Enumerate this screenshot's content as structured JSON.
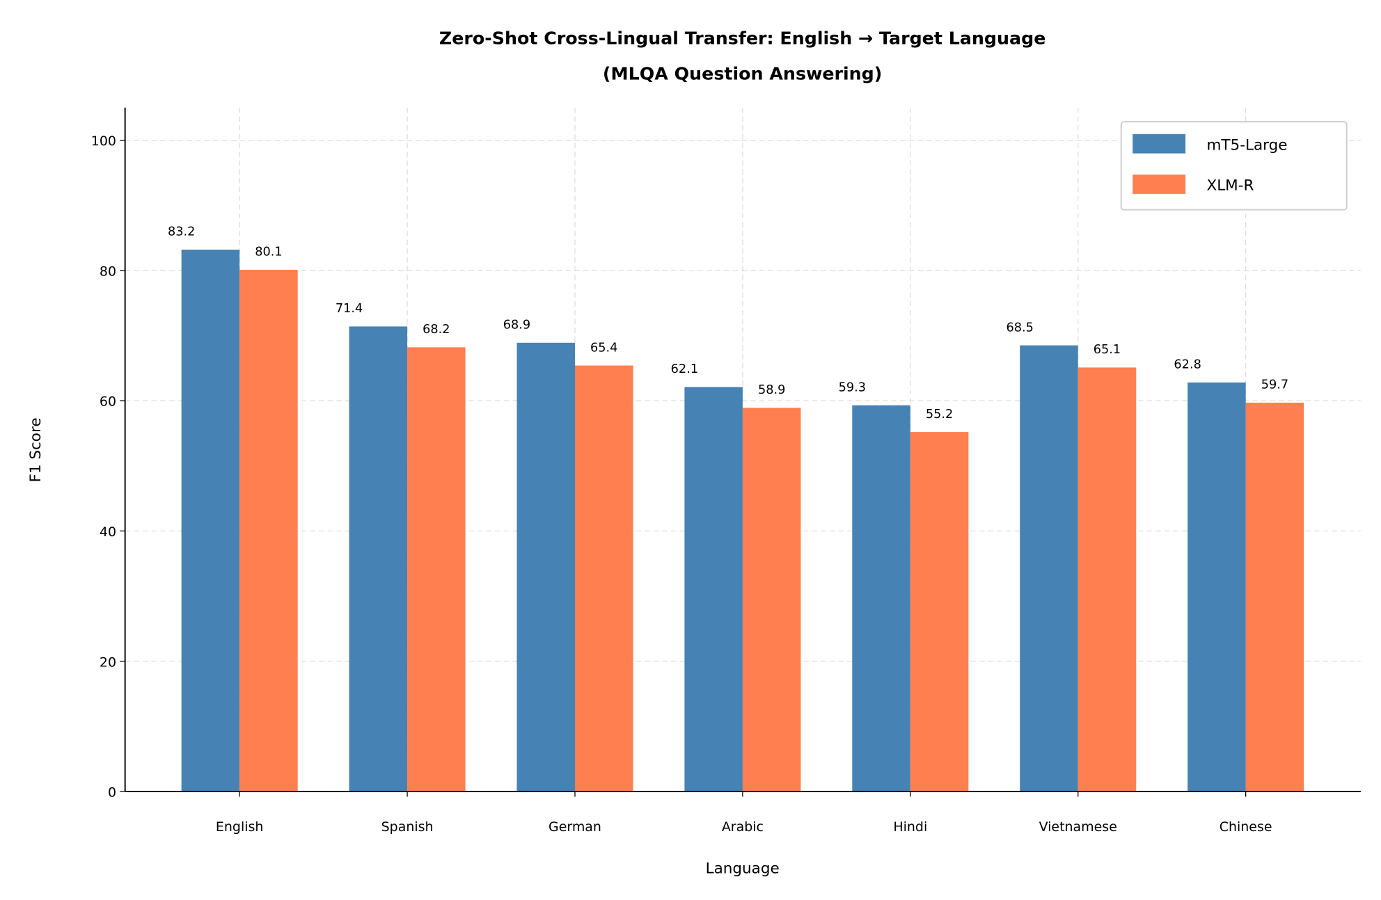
{
  "chart_data": {
    "type": "bar",
    "title": "Zero-Shot Cross-Lingual Transfer: English → Target Language",
    "subtitle": "(MLQA Question Answering)",
    "xlabel": "Language",
    "ylabel": "F1 Score",
    "ylim": [
      0,
      105
    ],
    "yticks": [
      "0",
      "20",
      "40",
      "60",
      "80",
      "100"
    ],
    "grid": true,
    "legend_placement": "top-right",
    "categories": [
      "English",
      "Spanish",
      "German",
      "Arabic",
      "Hindi",
      "Vietnamese",
      "Chinese"
    ],
    "series": [
      {
        "name": "mT5-Large",
        "color": "#4682b4",
        "values": [
          83.2,
          71.4,
          68.9,
          62.1,
          59.3,
          68.5,
          62.8
        ],
        "labels": [
          "83.2",
          "71.4",
          "68.9",
          "62.1",
          "59.3",
          "68.5",
          "62.8"
        ]
      },
      {
        "name": "XLM-R",
        "color": "#ff7f50",
        "values": [
          80.1,
          68.2,
          65.4,
          58.9,
          55.2,
          65.1,
          59.7
        ],
        "labels": [
          "80.1",
          "68.2",
          "65.4",
          "58.9",
          "55.2",
          "65.1",
          "59.7"
        ]
      }
    ]
  }
}
